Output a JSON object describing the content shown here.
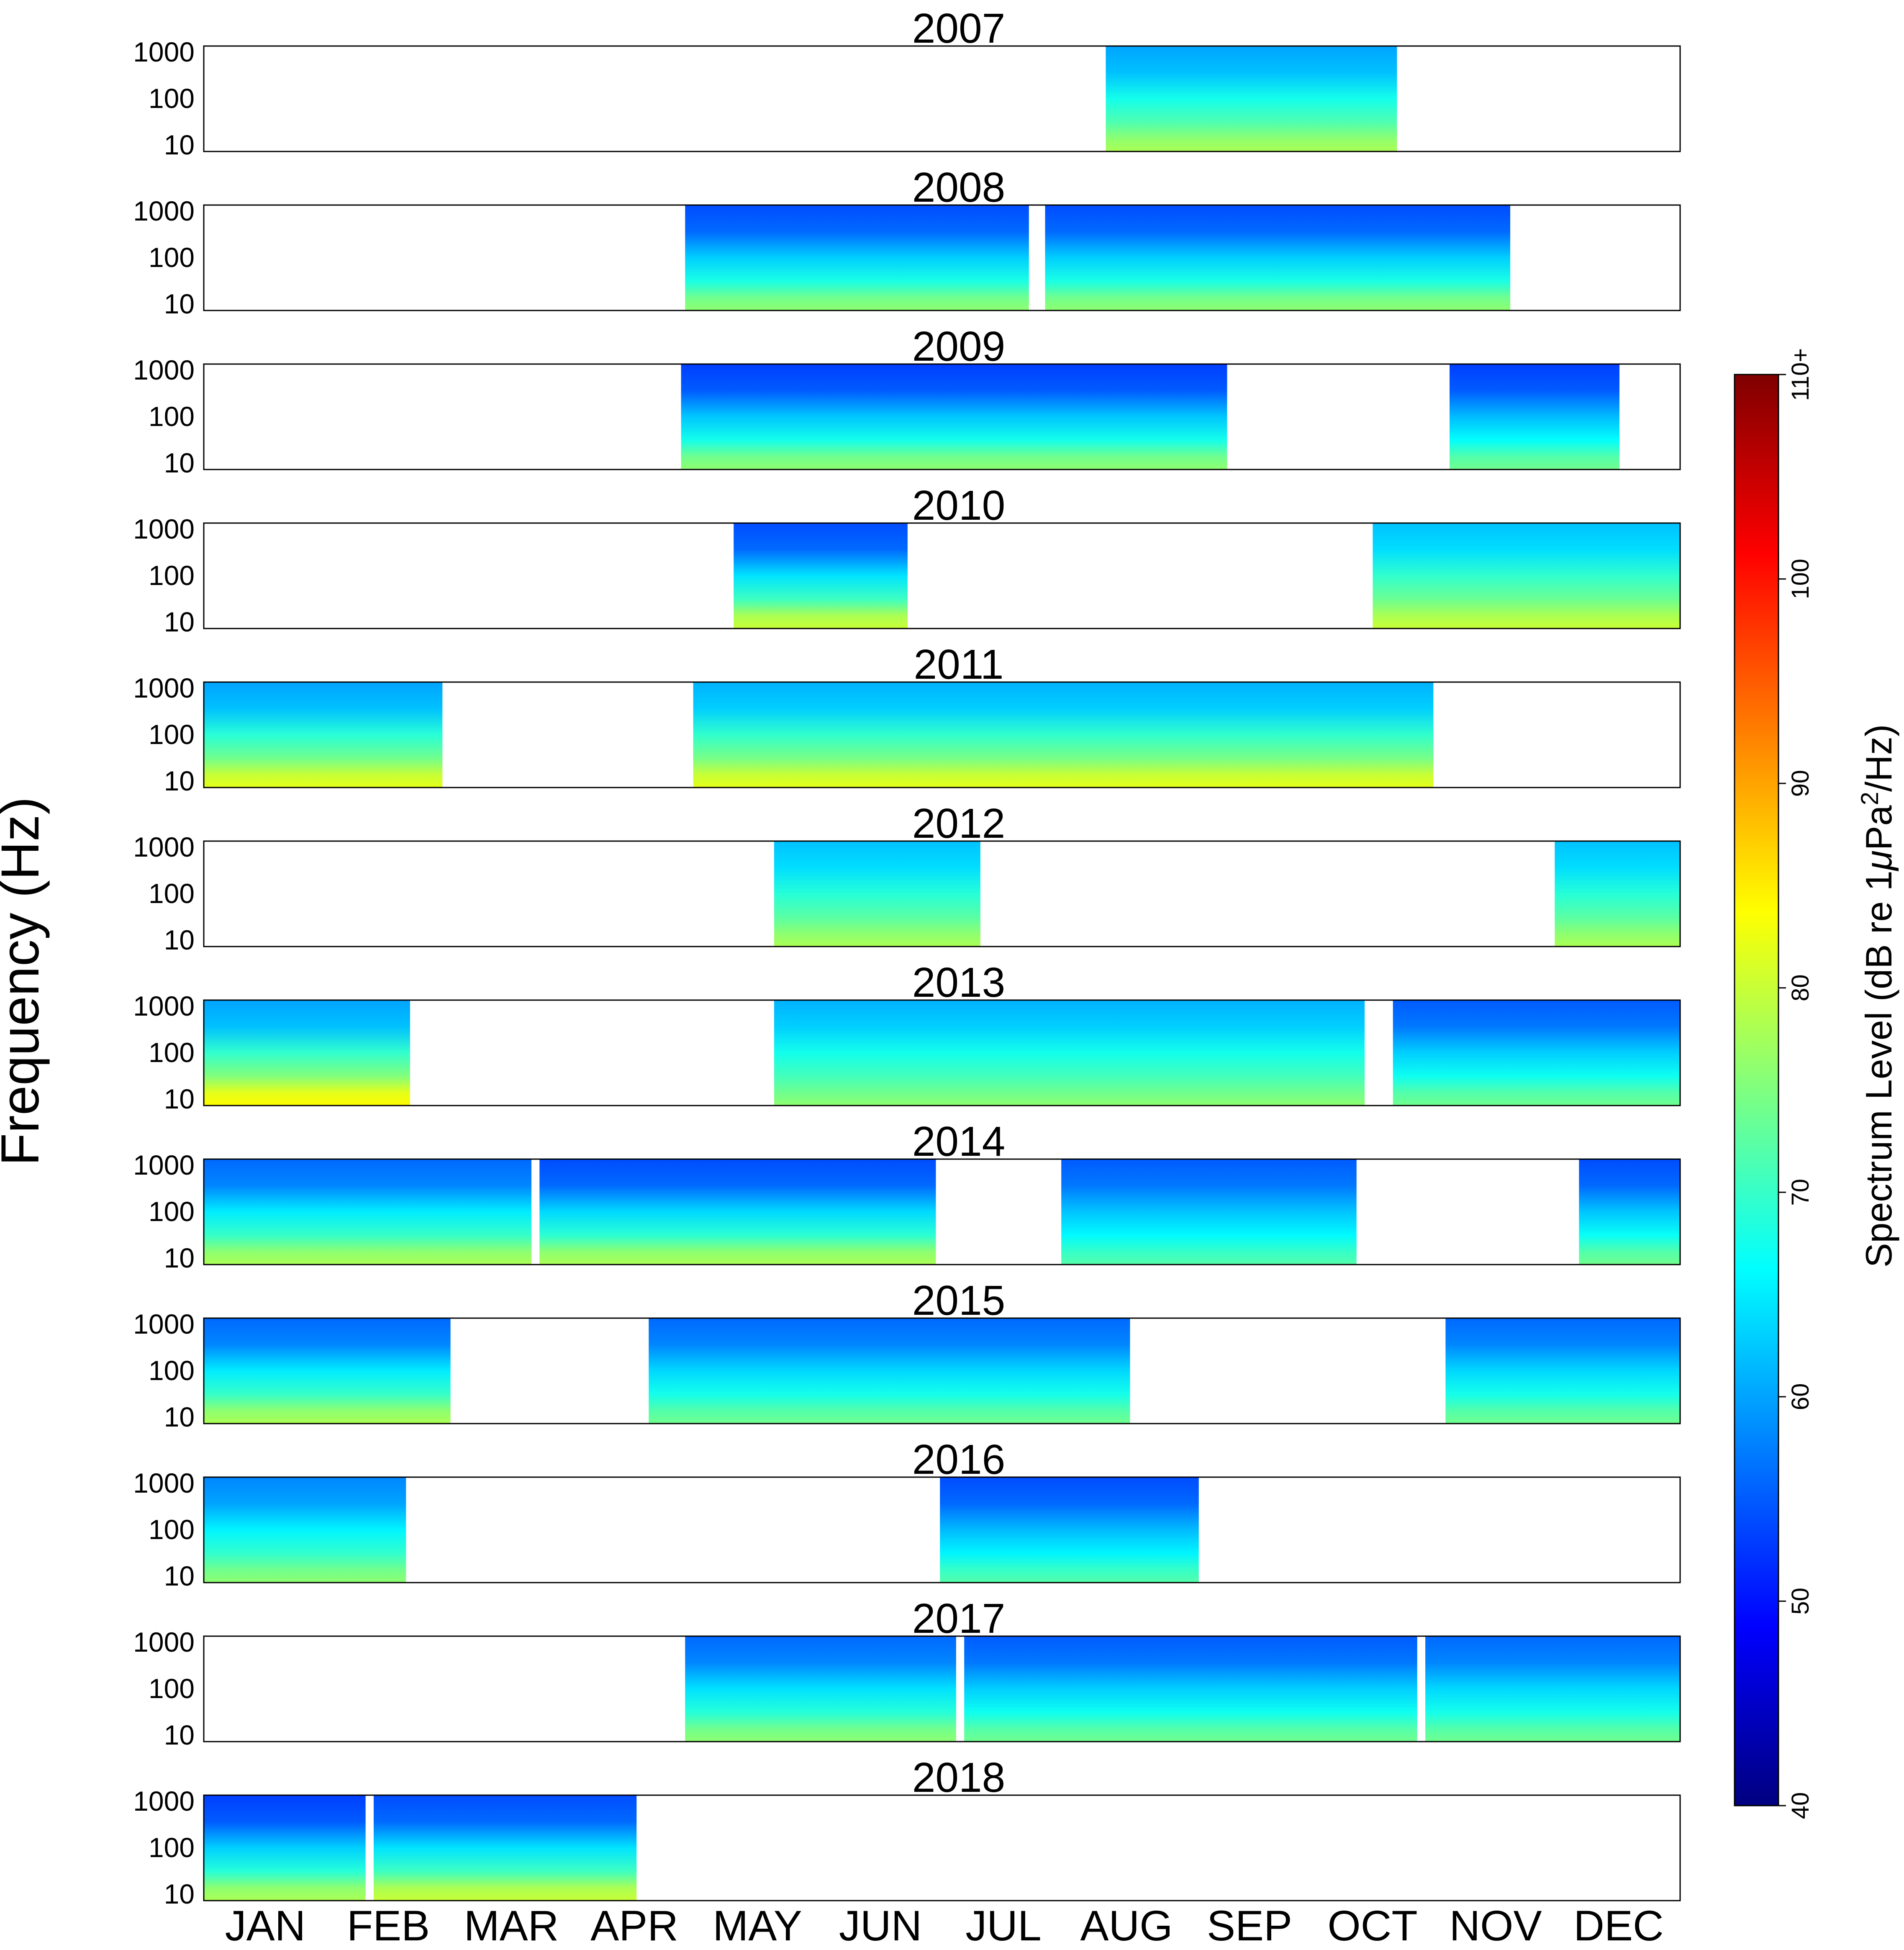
{
  "chart_data": {
    "type": "heatmap",
    "title": "",
    "ylabel": "Frequency (Hz)",
    "y_ticks": [
      "10",
      "100",
      "1000"
    ],
    "x_tick_labels": [
      "JAN",
      "FEB",
      "MAR",
      "APR",
      "MAY",
      "JUN",
      "JUL",
      "AUG",
      "SEP",
      "OCT",
      "NOV",
      "DEC"
    ],
    "x_range_days": [
      0,
      365
    ],
    "colorbar": {
      "label_prefix": "Spectrum Level (dB re 1",
      "label_mu": "μ",
      "label_pa": "Pa",
      "label_sup": "2",
      "label_suffix": "/Hz)",
      "range": [
        40,
        110
      ],
      "ticks": [
        "40",
        "50",
        "60",
        "70",
        "80",
        "90",
        "100",
        "110+"
      ],
      "colors": [
        "#00007f",
        "#0000ff",
        "#007fff",
        "#00ffff",
        "#7fff7f",
        "#ffff00",
        "#ff7f00",
        "#ff0000",
        "#7f0000"
      ]
    },
    "years": [
      {
        "title": "2007",
        "segments": [
          {
            "start": 223,
            "end": 295,
            "high_db": 62,
            "low_db": 78
          }
        ]
      },
      {
        "title": "2008",
        "segments": [
          {
            "start": 119,
            "end": 204,
            "high_db": 56,
            "low_db": 76
          },
          {
            "start": 208,
            "end": 323,
            "high_db": 56,
            "low_db": 76
          }
        ]
      },
      {
        "title": "2009",
        "segments": [
          {
            "start": 118,
            "end": 253,
            "high_db": 55,
            "low_db": 76
          },
          {
            "start": 308,
            "end": 350,
            "high_db": 55,
            "low_db": 74
          }
        ]
      },
      {
        "title": "2010",
        "segments": [
          {
            "start": 131,
            "end": 174,
            "high_db": 56,
            "low_db": 80
          },
          {
            "start": 289,
            "end": 365,
            "high_db": 64,
            "low_db": 80
          }
        ]
      },
      {
        "title": "2011",
        "segments": [
          {
            "start": 0,
            "end": 59,
            "high_db": 62,
            "low_db": 82
          },
          {
            "start": 121,
            "end": 304,
            "high_db": 63,
            "low_db": 82
          }
        ]
      },
      {
        "title": "2012",
        "segments": [
          {
            "start": 141,
            "end": 192,
            "high_db": 64,
            "low_db": 78
          },
          {
            "start": 334,
            "end": 365,
            "high_db": 64,
            "low_db": 78
          }
        ]
      },
      {
        "title": "2013",
        "segments": [
          {
            "start": 0,
            "end": 51,
            "high_db": 62,
            "low_db": 84
          },
          {
            "start": 141,
            "end": 287,
            "high_db": 63,
            "low_db": 76
          },
          {
            "start": 294,
            "end": 365,
            "high_db": 57,
            "low_db": 74
          }
        ]
      },
      {
        "title": "2014",
        "segments": [
          {
            "start": 0,
            "end": 81,
            "high_db": 58,
            "low_db": 78
          },
          {
            "start": 83,
            "end": 181,
            "high_db": 56,
            "low_db": 78
          },
          {
            "start": 212,
            "end": 285,
            "high_db": 57,
            "low_db": 72
          },
          {
            "start": 340,
            "end": 365,
            "high_db": 56,
            "low_db": 74
          }
        ]
      },
      {
        "title": "2015",
        "segments": [
          {
            "start": 0,
            "end": 61,
            "high_db": 58,
            "low_db": 78
          },
          {
            "start": 110,
            "end": 229,
            "high_db": 58,
            "low_db": 74
          },
          {
            "start": 307,
            "end": 365,
            "high_db": 58,
            "low_db": 74
          }
        ]
      },
      {
        "title": "2016",
        "segments": [
          {
            "start": 0,
            "end": 50,
            "high_db": 60,
            "low_db": 76
          },
          {
            "start": 182,
            "end": 246,
            "high_db": 56,
            "low_db": 72
          }
        ]
      },
      {
        "title": "2017",
        "segments": [
          {
            "start": 119,
            "end": 186,
            "high_db": 58,
            "low_db": 76
          },
          {
            "start": 188,
            "end": 300,
            "high_db": 57,
            "low_db": 74
          },
          {
            "start": 302,
            "end": 365,
            "high_db": 58,
            "low_db": 74
          }
        ]
      },
      {
        "title": "2018",
        "segments": [
          {
            "start": 0,
            "end": 40,
            "high_db": 55,
            "low_db": 78
          },
          {
            "start": 42,
            "end": 107,
            "high_db": 56,
            "low_db": 80
          }
        ]
      }
    ]
  }
}
